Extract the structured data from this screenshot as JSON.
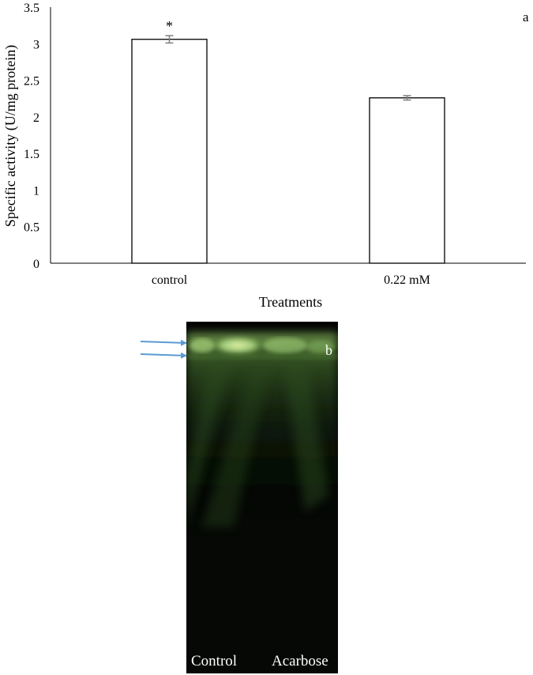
{
  "chart_data": {
    "type": "bar",
    "categories": [
      "control",
      "0.22 mM"
    ],
    "values": [
      3.06,
      2.26
    ],
    "error": [
      0.05,
      0.03
    ],
    "significance": [
      "*",
      ""
    ],
    "xlabel": "Treatments",
    "ylabel": "Specific activity (U/mg protein)",
    "ylim": [
      0,
      3.5
    ],
    "yticks": [
      "0",
      "0.5",
      "1",
      "1.5",
      "2",
      "2.5",
      "3",
      "3.5"
    ],
    "grid": false,
    "bar_fill": "#ffffff",
    "bar_stroke": "#000000",
    "errorbar_color": "#7f7f7f"
  },
  "panels": {
    "a": "a",
    "b": "b"
  },
  "gel": {
    "lane_labels": [
      "Control",
      "Acarbose"
    ],
    "band_color": "#b5e08a",
    "background": "#050805",
    "arrow_color": "#5b9bd5",
    "arrows": 2
  }
}
